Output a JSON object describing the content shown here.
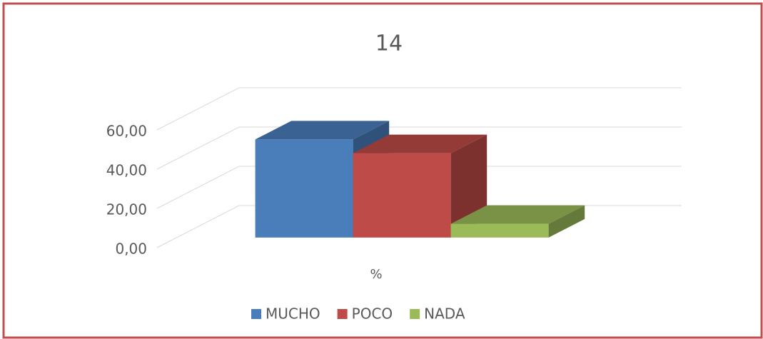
{
  "chart_data": {
    "type": "bar3d",
    "title": "14",
    "categories": [
      "%"
    ],
    "series": [
      {
        "name": "MUCHO",
        "color": "#4a7ebb",
        "values": [
          50
        ]
      },
      {
        "name": "POCO",
        "color": "#be4b48",
        "values": [
          43
        ]
      },
      {
        "name": "NADA",
        "color": "#9bbb59",
        "values": [
          7
        ]
      }
    ],
    "ylim": [
      0,
      60
    ],
    "yticks": [
      {
        "value": 0,
        "label": "0,00"
      },
      {
        "value": 20,
        "label": "20,00"
      },
      {
        "value": 40,
        "label": "40,00"
      },
      {
        "value": 60,
        "label": "60,00"
      }
    ],
    "grid": true,
    "legend": "bottom"
  }
}
